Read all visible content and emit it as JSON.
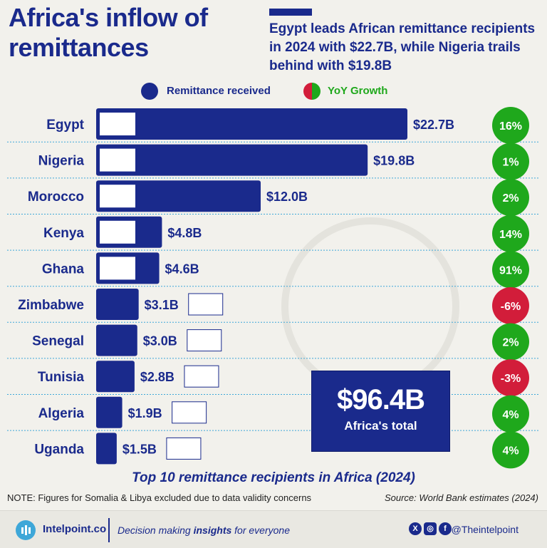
{
  "title": "Africa's inflow of remittances",
  "subtitle": "Egypt leads African remittance recipients in 2024 with $22.7B, while Nigeria trails behind with $19.8B",
  "legend": {
    "remittance": "Remittance received",
    "growth": "YoY Growth"
  },
  "colors": {
    "bar": "#1a2a8c",
    "positive": "#1fa81c",
    "negative": "#d21d3a",
    "text": "#1a2a8c"
  },
  "chart_data": {
    "type": "bar",
    "orientation": "horizontal",
    "categories": [
      "Egypt",
      "Nigeria",
      "Morocco",
      "Kenya",
      "Ghana",
      "Zimbabwe",
      "Senegal",
      "Tunisia",
      "Algeria",
      "Uganda"
    ],
    "values": [
      22.7,
      19.8,
      12.0,
      4.8,
      4.6,
      3.1,
      3.0,
      2.8,
      1.9,
      1.5
    ],
    "value_labels": [
      "$22.7B",
      "$19.8B",
      "$12.0B",
      "$4.8B",
      "$4.6B",
      "$3.1B",
      "$3.0B",
      "$2.8B",
      "$1.9B",
      "$1.5B"
    ],
    "yoy_growth": [
      16,
      1,
      2,
      14,
      91,
      -6,
      2,
      -3,
      4,
      4
    ],
    "yoy_labels": [
      "16%",
      "1%",
      "2%",
      "14%",
      "91%",
      "-6%",
      "2%",
      "-3%",
      "4%",
      "4%"
    ],
    "title": "Top 10 remittance recipients in Africa (2024)",
    "xlim": [
      0,
      22.7
    ]
  },
  "total": {
    "value": "$96.4B",
    "label": "Africa's total"
  },
  "note": "NOTE: Figures for Somalia & Libya excluded due to data validity concerns",
  "source": "Source: World Bank estimates (2024)",
  "footer": {
    "brand": "Intelpoint.co",
    "tagline_pre": "Decision making ",
    "tagline_bold": "insights",
    "tagline_post": " for everyone",
    "handle": "@Theintelpoint"
  }
}
